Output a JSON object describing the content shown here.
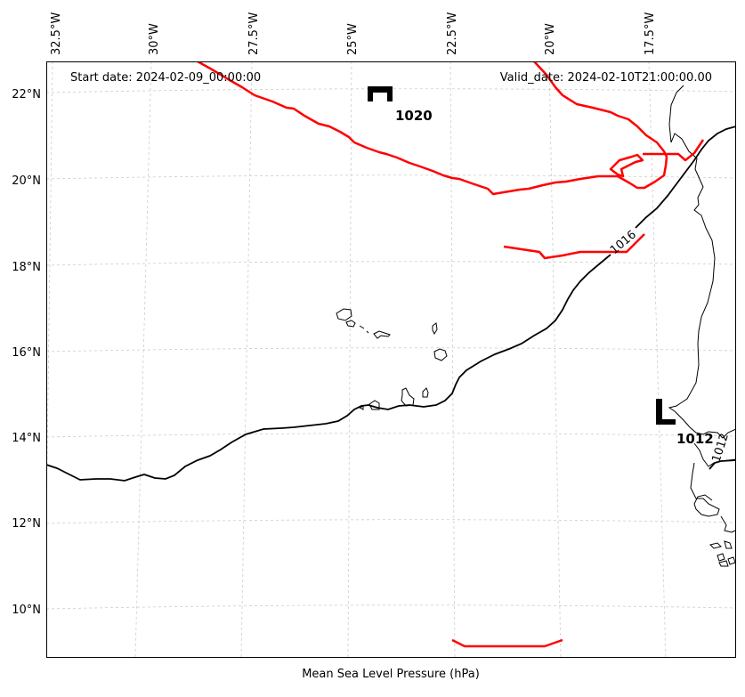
{
  "map": {
    "start_date": "Start date: 2024-02-09_00:00:00",
    "valid_date": "Valid_date: 2024-02-10T21:00:00.00",
    "caption": "Mean Sea Level Pressure (hPa)",
    "lon_ticks": [
      "32.5°W",
      "30°W",
      "27.5°W",
      "25°W",
      "22.5°W",
      "20°W",
      "17.5°W"
    ],
    "lat_ticks": [
      "22°N",
      "20°N",
      "18°N",
      "16°N",
      "14°N",
      "12°N",
      "10°N"
    ],
    "high_center": {
      "symbol": "H",
      "value": "1020"
    },
    "low_center": {
      "symbol": "L",
      "value": "1012"
    },
    "contour_labels": {
      "c1016": "1016",
      "c1012": "1012"
    },
    "colors": {
      "high_isobar": "#ff0000",
      "isobar": "#000000",
      "coast": "#000000",
      "grid": "#cccccc"
    }
  }
}
